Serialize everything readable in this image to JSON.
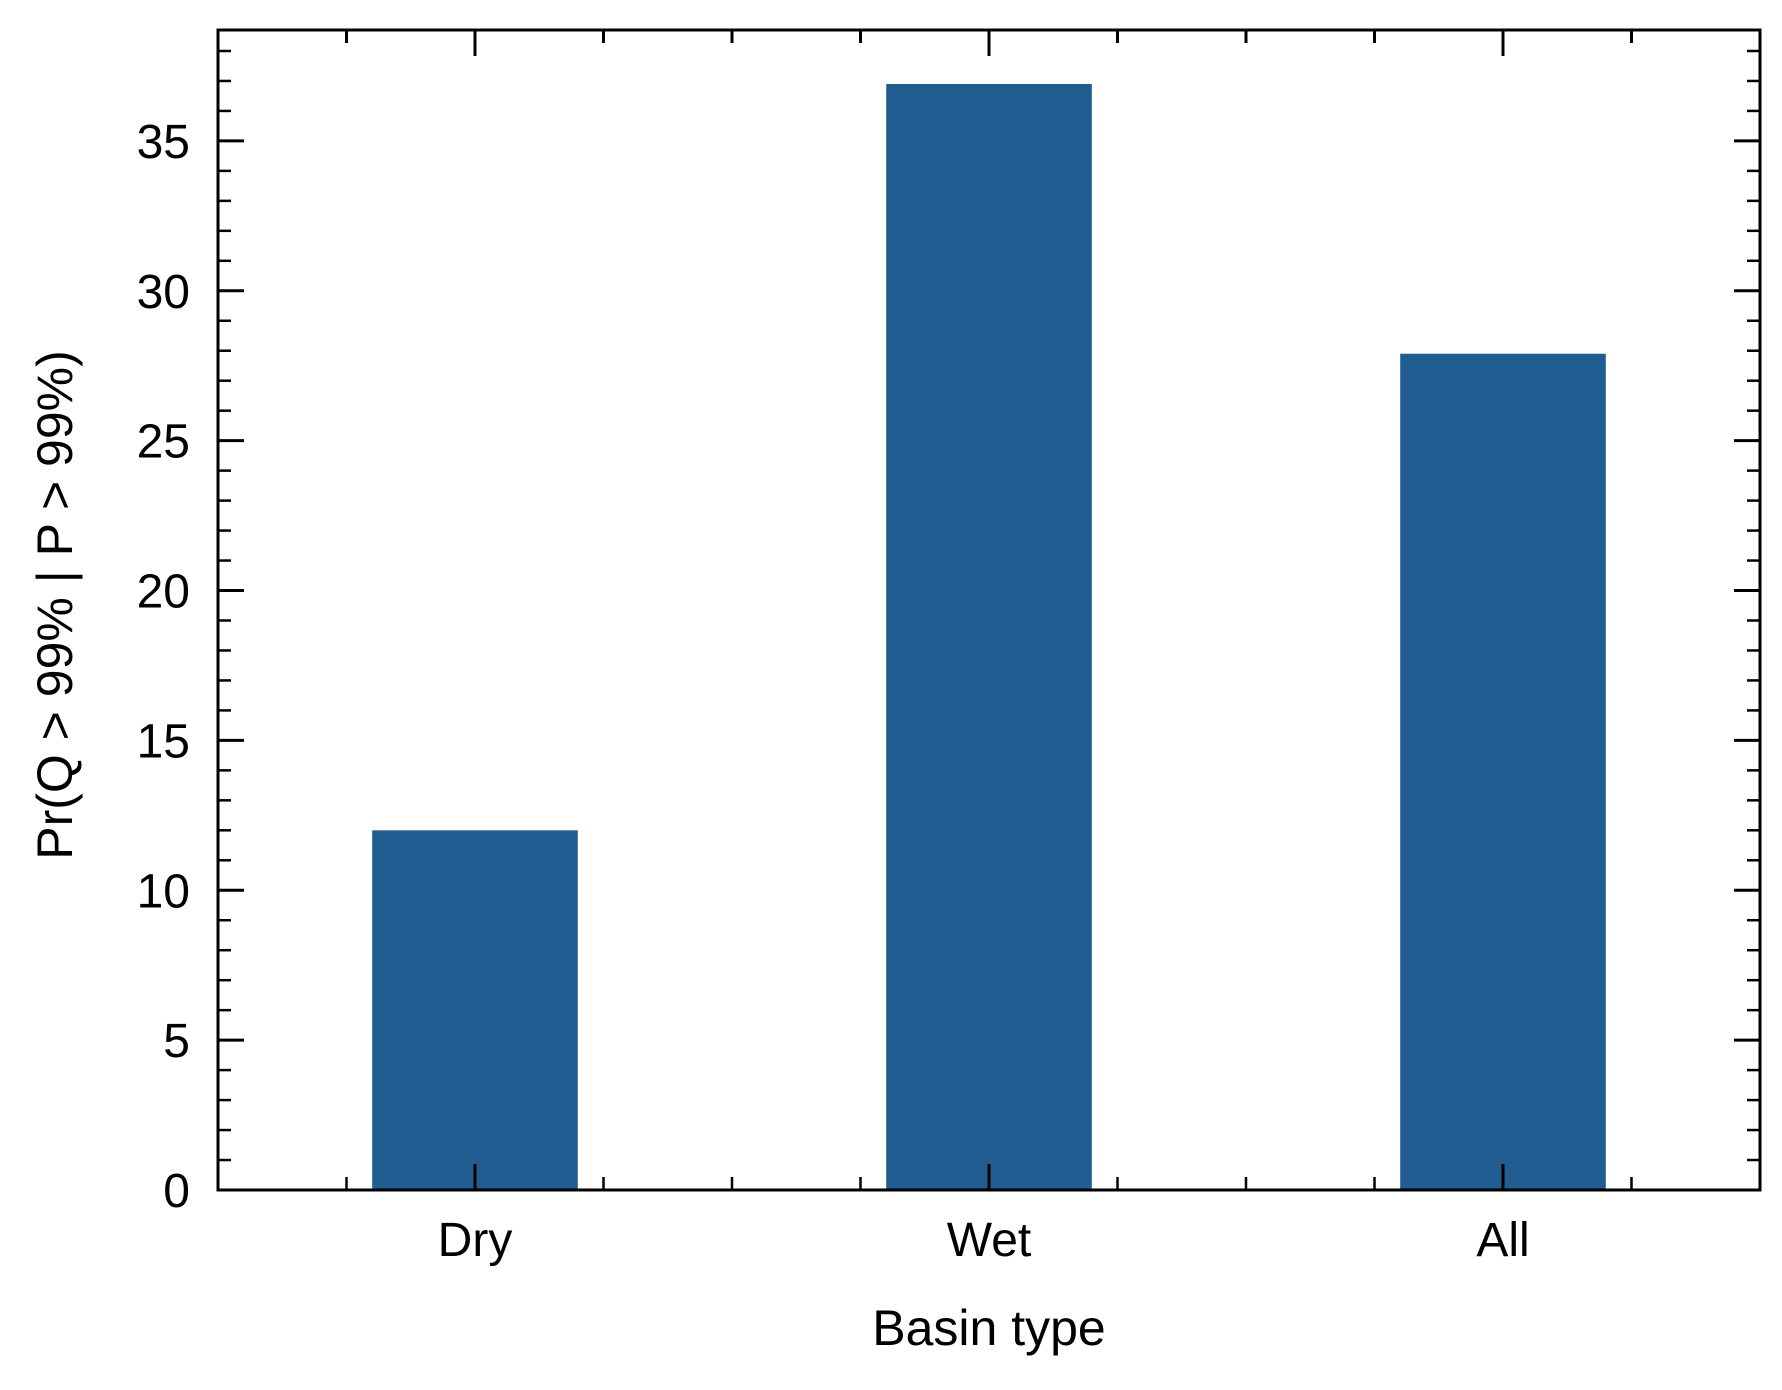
{
  "chart_data": {
    "type": "bar",
    "title": "",
    "xlabel": "Basin type",
    "ylabel": "Pr(Q > 99% | P > 99%)",
    "categories": [
      "Dry",
      "Wet",
      "All"
    ],
    "values": [
      12.0,
      36.9,
      27.9
    ],
    "ylim": [
      0,
      38.7
    ],
    "yticks": [
      0,
      5,
      10,
      15,
      20,
      25,
      30,
      35
    ],
    "ytick_labels": [
      "0",
      "5",
      "10",
      "15",
      "20",
      "25",
      "30",
      "35"
    ],
    "y_minor_step": 1,
    "grid": false,
    "legend": "none",
    "bar_color": "#215d91",
    "axis_color": "#000000",
    "tick_direction": "in",
    "mirror_ticks": true
  }
}
